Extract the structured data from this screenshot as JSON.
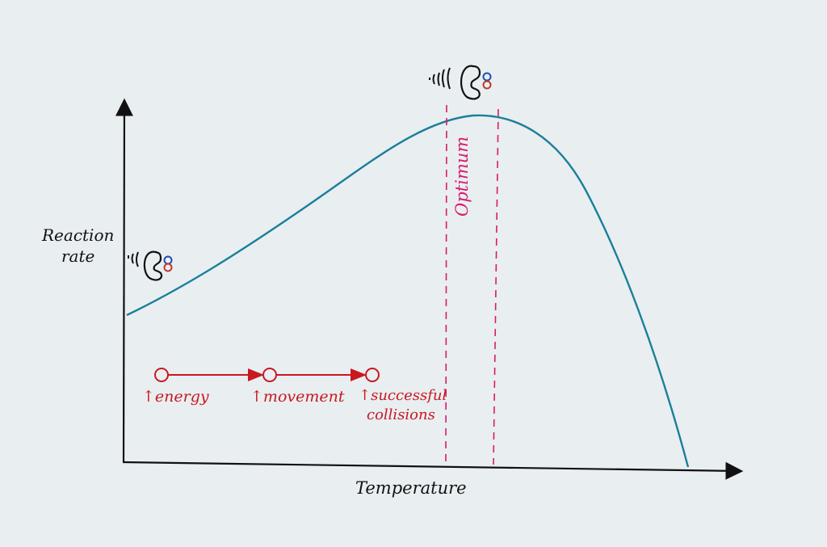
{
  "axes": {
    "y_label_line1": "Reaction",
    "y_label_line2": "rate",
    "x_label": "Temperature"
  },
  "optimum_label": "Optimum",
  "chain": {
    "steps": [
      {
        "label": "energy"
      },
      {
        "label": "movement"
      },
      {
        "label": "successful",
        "label2": "collisions"
      }
    ],
    "prefix_arrow": "↑"
  },
  "colors": {
    "curve": "#1a7f9a",
    "axes": "#111111",
    "chain": "#c8191f",
    "optimum": "#d81b6a",
    "substrate_top": "#1f4fb0",
    "substrate_bottom": "#c0392b",
    "background": "#e9eef1"
  },
  "icons": [
    "vibrating-enzyme-icon-low-temp",
    "vibrating-enzyme-icon-optimum"
  ]
}
